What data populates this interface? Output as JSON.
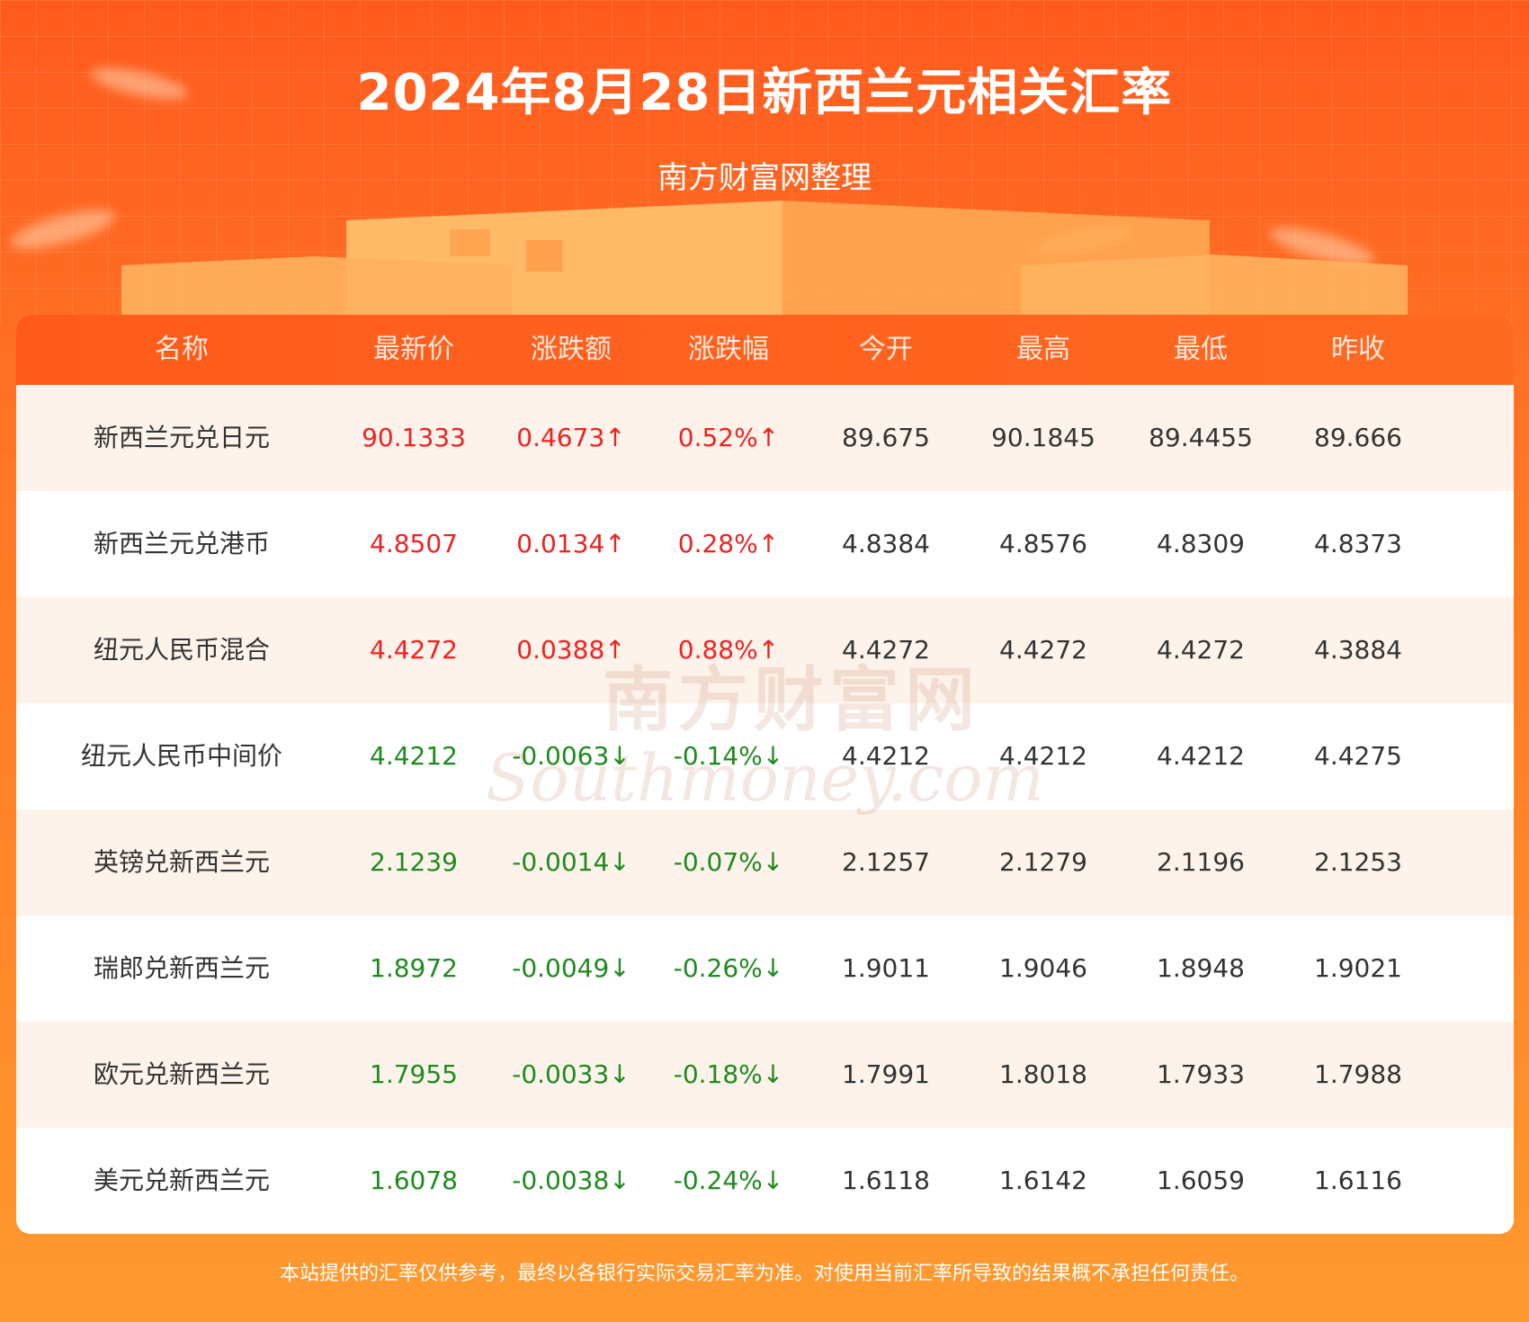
{
  "header": {
    "title": "2024年8月28日新西兰元相关汇率",
    "subtitle": "南方财富网整理"
  },
  "colors": {
    "up": "#ee2222",
    "down": "#1f8a1f",
    "accent": "#ff5a1a"
  },
  "table": {
    "columns": [
      "名称",
      "最新价",
      "涨跌额",
      "涨跌幅",
      "今开",
      "最高",
      "最低",
      "昨收"
    ],
    "rows": [
      {
        "name": "新西兰元兑日元",
        "latest": "90.1333",
        "change": "0.4673↑",
        "pct": "0.52%↑",
        "open": "89.675",
        "high": "90.1845",
        "low": "89.4455",
        "prev": "89.666",
        "dir": "up"
      },
      {
        "name": "新西兰元兑港币",
        "latest": "4.8507",
        "change": "0.0134↑",
        "pct": "0.28%↑",
        "open": "4.8384",
        "high": "4.8576",
        "low": "4.8309",
        "prev": "4.8373",
        "dir": "up"
      },
      {
        "name": "纽元人民币混合",
        "latest": "4.4272",
        "change": "0.0388↑",
        "pct": "0.88%↑",
        "open": "4.4272",
        "high": "4.4272",
        "low": "4.4272",
        "prev": "4.3884",
        "dir": "up"
      },
      {
        "name": "纽元人民币中间价",
        "latest": "4.4212",
        "change": "-0.0063↓",
        "pct": "-0.14%↓",
        "open": "4.4212",
        "high": "4.4212",
        "low": "4.4212",
        "prev": "4.4275",
        "dir": "down"
      },
      {
        "name": "英镑兑新西兰元",
        "latest": "2.1239",
        "change": "-0.0014↓",
        "pct": "-0.07%↓",
        "open": "2.1257",
        "high": "2.1279",
        "low": "2.1196",
        "prev": "2.1253",
        "dir": "down"
      },
      {
        "name": "瑞郎兑新西兰元",
        "latest": "1.8972",
        "change": "-0.0049↓",
        "pct": "-0.26%↓",
        "open": "1.9011",
        "high": "1.9046",
        "low": "1.8948",
        "prev": "1.9021",
        "dir": "down"
      },
      {
        "name": "欧元兑新西兰元",
        "latest": "1.7955",
        "change": "-0.0033↓",
        "pct": "-0.18%↓",
        "open": "1.7991",
        "high": "1.8018",
        "low": "1.7933",
        "prev": "1.7988",
        "dir": "down"
      },
      {
        "name": "美元兑新西兰元",
        "latest": "1.6078",
        "change": "-0.0038↓",
        "pct": "-0.24%↓",
        "open": "1.6118",
        "high": "1.6142",
        "low": "1.6059",
        "prev": "1.6116",
        "dir": "down"
      }
    ]
  },
  "watermark": {
    "cn": "南方财富网",
    "en": "Southmoney.com"
  },
  "footer": {
    "disclaimer": "本站提供的汇率仅供参考，最终以各银行实际交易汇率为准。对使用当前汇率所导致的结果概不承担任何责任。"
  }
}
